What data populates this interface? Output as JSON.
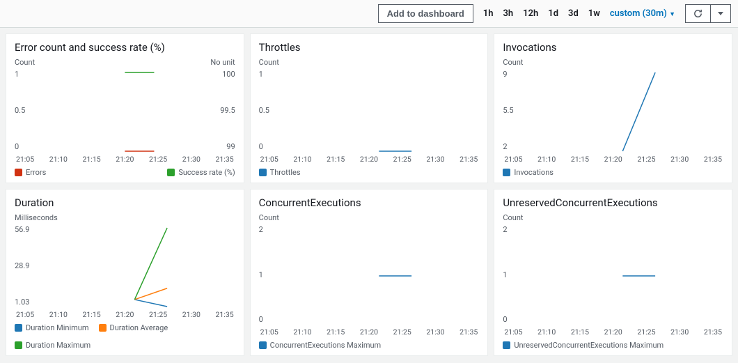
{
  "toolbar": {
    "addToDashboard": "Add to dashboard",
    "ranges": [
      "1h",
      "3h",
      "12h",
      "1d",
      "3d",
      "1w"
    ],
    "custom": "custom (30m)"
  },
  "xticks": [
    "21:05",
    "21:10",
    "21:15",
    "21:20",
    "21:25",
    "21:30",
    "21:35"
  ],
  "colors": {
    "errors": "#d13212",
    "success": "#2ca02c",
    "blue": "#1f77b4",
    "orange": "#ff7f0e",
    "green": "#2ca02c"
  },
  "cards": [
    {
      "title": "Error count and success rate (%)",
      "ylabelLeft": "Count",
      "ylabelRight": "No unit",
      "yticksLeft": [
        "1",
        "0.5",
        "0"
      ],
      "yticksRight": [
        "100",
        "99.5",
        "99"
      ],
      "dualAxis": true,
      "series": [
        {
          "name": "Errors",
          "color": "#d13212",
          "swatch": "box",
          "points": [
            [
              3,
              0
            ],
            [
              4,
              0
            ]
          ]
        },
        {
          "name": "Success rate (%)",
          "color": "#2ca02c",
          "swatch": "box",
          "points": [
            [
              3,
              1
            ],
            [
              4,
              1
            ]
          ]
        }
      ],
      "ymin": 0,
      "ymax": 1,
      "legend": [
        {
          "label": "Errors",
          "color": "#d13212"
        },
        {
          "label": "Success rate (%)",
          "color": "#2ca02c"
        }
      ],
      "legendSplit": true
    },
    {
      "title": "Throttles",
      "ylabelLeft": "Count",
      "yticksLeft": [
        "1",
        "0.5",
        "0"
      ],
      "ymin": 0,
      "ymax": 1,
      "series": [
        {
          "name": "Throttles",
          "color": "#1f77b4",
          "points": [
            [
              3,
              0
            ],
            [
              4,
              0
            ]
          ]
        }
      ],
      "legend": [
        {
          "label": "Throttles",
          "color": "#1f77b4"
        }
      ]
    },
    {
      "title": "Invocations",
      "ylabelLeft": "Count",
      "yticksLeft": [
        "9",
        "5.5",
        "2"
      ],
      "ymin": 2,
      "ymax": 9,
      "series": [
        {
          "name": "Invocations",
          "color": "#1f77b4",
          "points": [
            [
              3,
              2
            ],
            [
              4,
              9
            ]
          ]
        }
      ],
      "legend": [
        {
          "label": "Invocations",
          "color": "#1f77b4"
        }
      ]
    },
    {
      "title": "Duration",
      "ylabelLeft": "Milliseconds",
      "yticksLeft": [
        "56.9",
        "28.9",
        "1.03"
      ],
      "ymin": 1.03,
      "ymax": 56.9,
      "series": [
        {
          "name": "Duration Minimum",
          "color": "#1f77b4",
          "points": [
            [
              3,
              6
            ],
            [
              4,
              1.03
            ]
          ]
        },
        {
          "name": "Duration Average",
          "color": "#ff7f0e",
          "points": [
            [
              3,
              6
            ],
            [
              4,
              14
            ]
          ]
        },
        {
          "name": "Duration Maximum",
          "color": "#2ca02c",
          "points": [
            [
              3,
              6
            ],
            [
              4,
              56.9
            ]
          ]
        }
      ],
      "legend": [
        {
          "label": "Duration Minimum",
          "color": "#1f77b4"
        },
        {
          "label": "Duration Average",
          "color": "#ff7f0e"
        },
        {
          "label": "Duration Maximum",
          "color": "#2ca02c"
        }
      ]
    },
    {
      "title": "ConcurrentExecutions",
      "ylabelLeft": "Count",
      "yticksLeft": [
        "2",
        "1",
        "0"
      ],
      "ymin": 0,
      "ymax": 2,
      "series": [
        {
          "name": "ConcurrentExecutions Maximum",
          "color": "#1f77b4",
          "points": [
            [
              3,
              1
            ],
            [
              4,
              1
            ]
          ]
        }
      ],
      "legend": [
        {
          "label": "ConcurrentExecutions Maximum",
          "color": "#1f77b4"
        }
      ]
    },
    {
      "title": "UnreservedConcurrentExecutions",
      "ylabelLeft": "Count",
      "yticksLeft": [
        "2",
        "1",
        "0"
      ],
      "ymin": 0,
      "ymax": 2,
      "series": [
        {
          "name": "UnreservedConcurrentExecutions Maximum",
          "color": "#1f77b4",
          "points": [
            [
              3,
              1
            ],
            [
              4,
              1
            ]
          ]
        }
      ],
      "legend": [
        {
          "label": "UnreservedConcurrentExecutions Maximum",
          "color": "#1f77b4"
        }
      ]
    }
  ]
}
